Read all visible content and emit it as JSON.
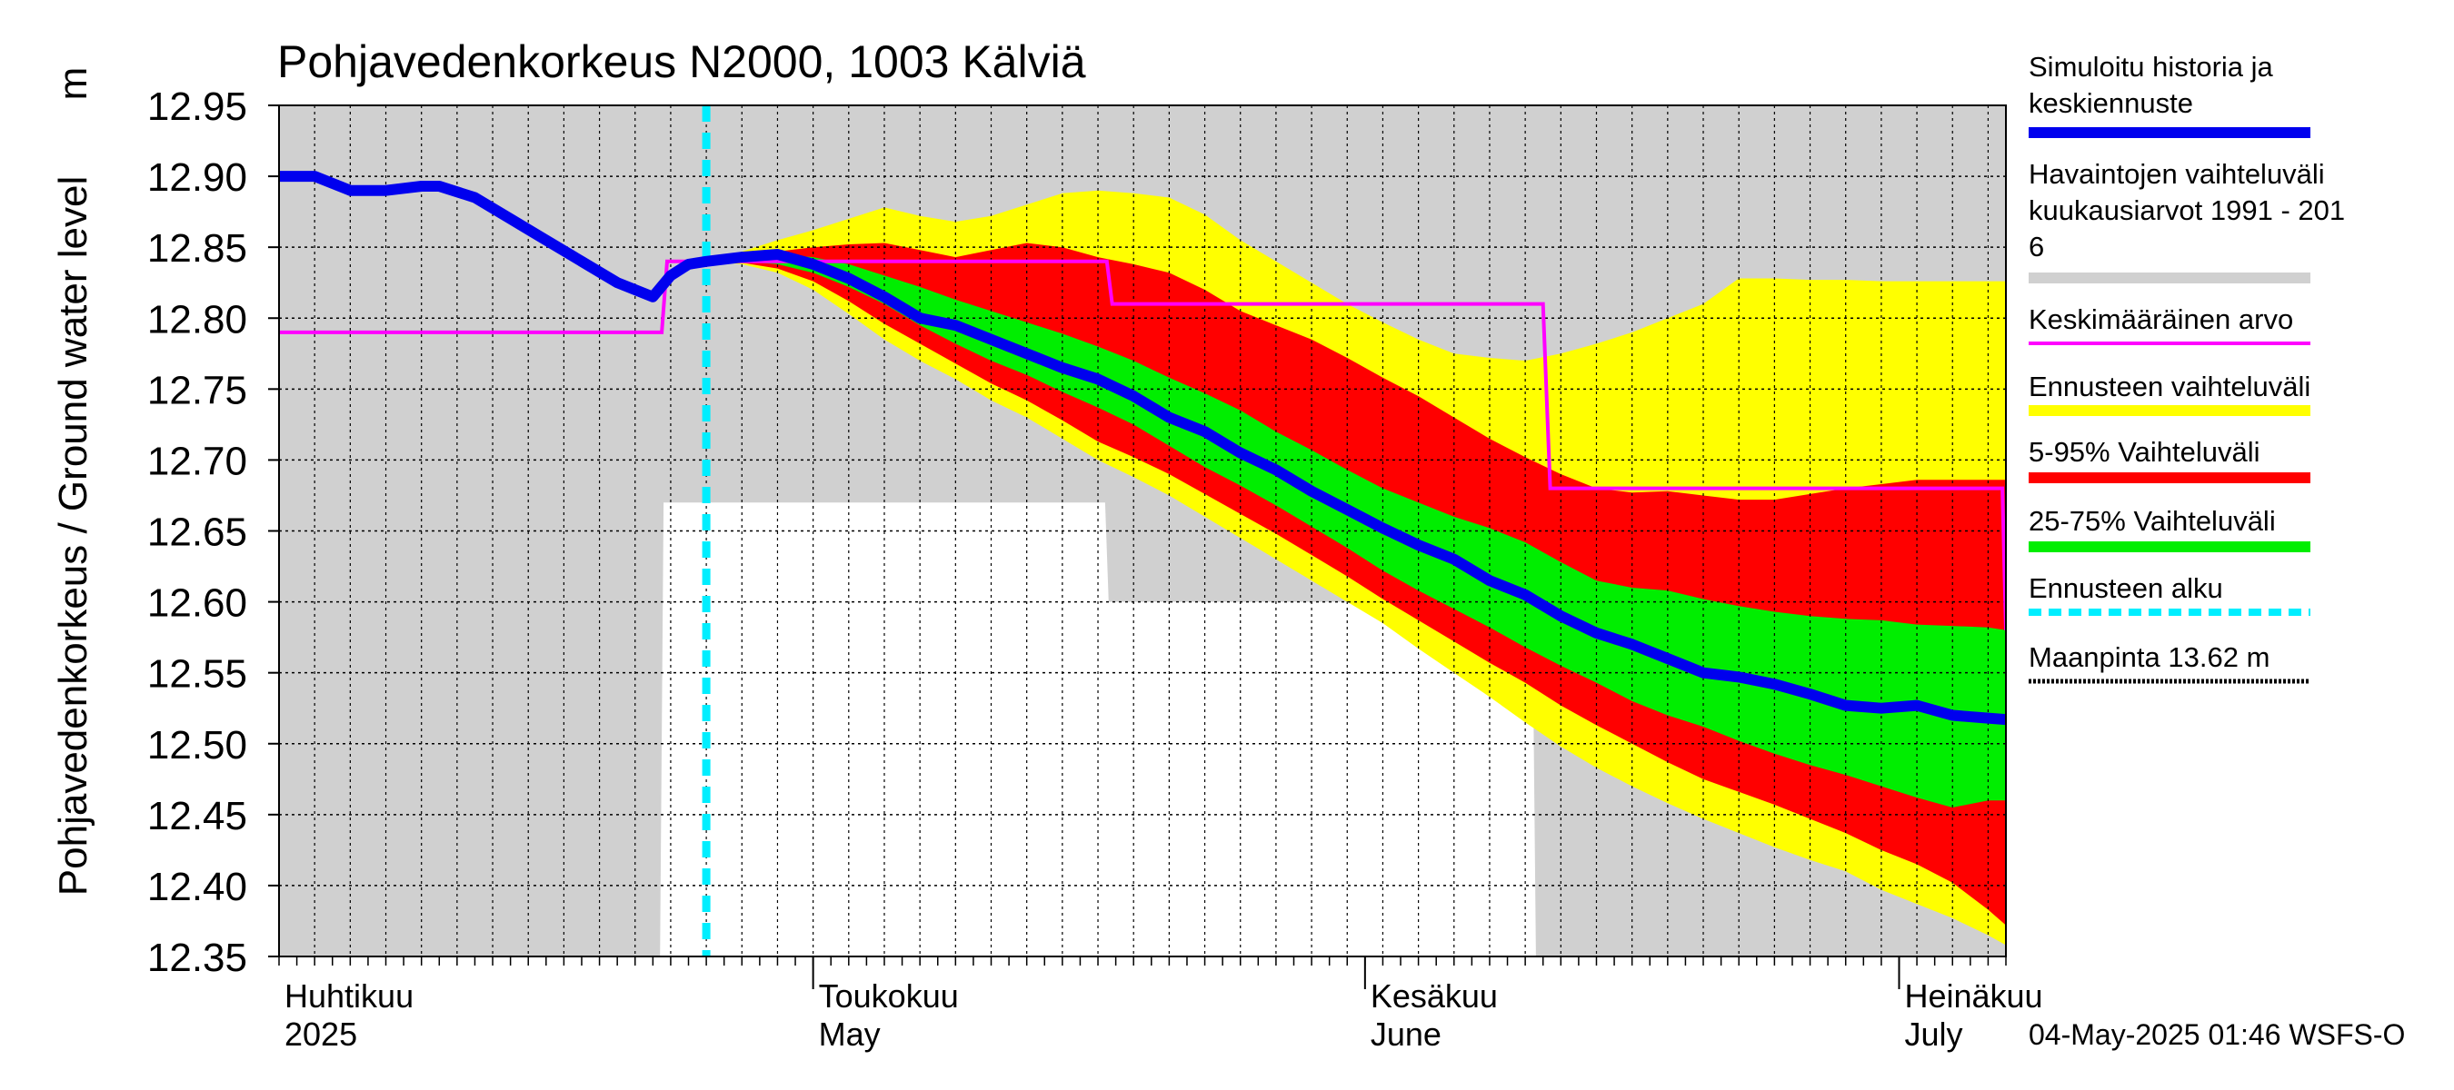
{
  "chart_data": {
    "type": "area",
    "title": "Pohjavedenkorkeus N2000, 1003 Kälviä",
    "ylabel_fi": "Pohjavedenkorkeus / Ground water level",
    "ylabel_unit": "m",
    "ylim": [
      12.35,
      12.95
    ],
    "yticks": [
      "12.95",
      "12.90",
      "12.85",
      "12.80",
      "12.75",
      "12.70",
      "12.65",
      "12.60",
      "12.55",
      "12.50",
      "12.45",
      "12.40",
      "12.35"
    ],
    "x_range_days": [
      0,
      97
    ],
    "month_labels": [
      {
        "fi": "Huhtikuu",
        "en": "2025",
        "day": 0
      },
      {
        "fi": "Toukokuu",
        "en": "May",
        "day": 30
      },
      {
        "fi": "Kesäkuu",
        "en": "June",
        "day": 61
      },
      {
        "fi": "Heinäkuu",
        "en": "July",
        "day": 91
      }
    ],
    "forecast_start_day": 24,
    "timestamp": "04-May-2025 01:46 WSFS-O",
    "legend": [
      {
        "label": "Simuloitu historia ja keskiennuste",
        "color": "#0000ee",
        "style": "thick"
      },
      {
        "label": "Havaintojen vaihteluväli kuukausiarvot 1991 - 2016",
        "color": "#d0d0d0",
        "style": "thick"
      },
      {
        "label": "Keskimääräinen arvo",
        "color": "#ff00ff",
        "style": "thin"
      },
      {
        "label": "Ennusteen vaihteluväli",
        "color": "#ffff00",
        "style": "thick"
      },
      {
        "label": "5-95% Vaihteluväli",
        "color": "#ff0000",
        "style": "thick"
      },
      {
        "label": "25-75% Vaihteluväli",
        "color": "#00ee00",
        "style": "thick"
      },
      {
        "label": "Ennusteen alku",
        "color": "#00eeff",
        "style": "dashed"
      },
      {
        "label": "Maanpinta 13.62 m",
        "color": "#000000",
        "style": "dotted"
      }
    ],
    "obs_range": {
      "x": [
        0,
        21.4,
        21.6,
        46.4,
        46.6,
        70.4,
        70.6,
        97
      ],
      "upper": [
        12.95,
        12.95,
        12.95,
        12.95,
        12.95,
        12.95,
        12.95,
        12.95
      ],
      "lower": [
        12.35,
        12.35,
        12.67,
        12.67,
        12.6,
        12.6,
        12.35,
        12.35
      ]
    },
    "mean_value": {
      "x": [
        0,
        21.5,
        21.8,
        46.5,
        46.8,
        71.0,
        71.4,
        96.8,
        97
      ],
      "y": [
        12.79,
        12.79,
        12.84,
        12.84,
        12.81,
        12.81,
        12.68,
        12.68,
        12.58
      ]
    },
    "simulated": {
      "x": [
        0,
        2,
        4,
        6,
        8,
        9,
        11,
        13,
        15,
        17,
        19,
        21,
        22,
        23,
        24,
        26,
        28,
        30,
        32,
        34,
        36,
        38,
        40,
        42,
        44,
        46,
        48,
        50,
        52,
        54,
        56,
        58,
        60,
        62,
        64,
        66,
        68,
        70,
        72,
        74,
        76,
        78,
        80,
        82,
        84,
        86,
        88,
        90,
        92,
        94,
        96,
        97
      ],
      "y": [
        12.9,
        12.9,
        12.89,
        12.89,
        12.893,
        12.893,
        12.885,
        12.87,
        12.855,
        12.84,
        12.825,
        12.815,
        12.83,
        12.838,
        12.84,
        12.843,
        12.845,
        12.838,
        12.828,
        12.815,
        12.8,
        12.795,
        12.785,
        12.775,
        12.765,
        12.757,
        12.745,
        12.73,
        12.72,
        12.705,
        12.693,
        12.678,
        12.665,
        12.652,
        12.64,
        12.63,
        12.615,
        12.605,
        12.59,
        12.578,
        12.57,
        12.56,
        12.55,
        12.547,
        12.542,
        12.535,
        12.527,
        12.525,
        12.527,
        12.52,
        12.518,
        12.517
      ]
    },
    "band_yellow": {
      "x": [
        24,
        26,
        28,
        30,
        32,
        34,
        36,
        38,
        40,
        42,
        44,
        46,
        48,
        50,
        52,
        54,
        56,
        58,
        60,
        62,
        64,
        66,
        68,
        70,
        72,
        74,
        76,
        78,
        80,
        82,
        84,
        86,
        88,
        90,
        92,
        94,
        96,
        97
      ],
      "upper": [
        12.84,
        12.847,
        12.855,
        12.862,
        12.87,
        12.878,
        12.872,
        12.868,
        12.872,
        12.88,
        12.888,
        12.89,
        12.888,
        12.885,
        12.873,
        12.855,
        12.84,
        12.825,
        12.81,
        12.797,
        12.785,
        12.775,
        12.772,
        12.77,
        12.775,
        12.782,
        12.79,
        12.8,
        12.81,
        12.828,
        12.828,
        12.827,
        12.827,
        12.826,
        12.826,
        12.826,
        12.826,
        12.826
      ],
      "lower": [
        12.84,
        12.838,
        12.832,
        12.82,
        12.803,
        12.785,
        12.77,
        12.757,
        12.742,
        12.73,
        12.715,
        12.7,
        12.688,
        12.675,
        12.66,
        12.645,
        12.63,
        12.615,
        12.6,
        12.585,
        12.567,
        12.55,
        12.533,
        12.515,
        12.498,
        12.483,
        12.47,
        12.458,
        12.447,
        12.437,
        12.427,
        12.418,
        12.41,
        12.397,
        12.387,
        12.377,
        12.365,
        12.358
      ]
    },
    "band_red": {
      "x": [
        24,
        26,
        28,
        30,
        32,
        34,
        36,
        38,
        40,
        42,
        44,
        46,
        48,
        50,
        52,
        54,
        56,
        58,
        60,
        62,
        64,
        66,
        68,
        70,
        72,
        74,
        76,
        78,
        80,
        82,
        84,
        86,
        88,
        90,
        92,
        94,
        96,
        97
      ],
      "upper": [
        12.84,
        12.843,
        12.847,
        12.85,
        12.852,
        12.853,
        12.848,
        12.843,
        12.848,
        12.853,
        12.85,
        12.843,
        12.838,
        12.832,
        12.82,
        12.805,
        12.795,
        12.785,
        12.772,
        12.758,
        12.745,
        12.73,
        12.715,
        12.702,
        12.69,
        12.68,
        12.677,
        12.678,
        12.675,
        12.672,
        12.672,
        12.676,
        12.68,
        12.683,
        12.686,
        12.686,
        12.686,
        12.686
      ],
      "lower": [
        12.84,
        12.839,
        12.835,
        12.826,
        12.812,
        12.796,
        12.782,
        12.768,
        12.754,
        12.742,
        12.728,
        12.713,
        12.702,
        12.69,
        12.676,
        12.662,
        12.648,
        12.633,
        12.618,
        12.602,
        12.587,
        12.572,
        12.557,
        12.543,
        12.527,
        12.513,
        12.5,
        12.487,
        12.475,
        12.466,
        12.457,
        12.447,
        12.437,
        12.425,
        12.415,
        12.402,
        12.383,
        12.372
      ]
    },
    "band_green": {
      "x": [
        24,
        26,
        28,
        30,
        32,
        34,
        36,
        38,
        40,
        42,
        44,
        46,
        48,
        50,
        52,
        54,
        56,
        58,
        60,
        62,
        64,
        66,
        68,
        70,
        72,
        74,
        76,
        78,
        80,
        82,
        84,
        86,
        88,
        90,
        92,
        94,
        96,
        97
      ],
      "upper": [
        12.84,
        12.842,
        12.845,
        12.843,
        12.838,
        12.83,
        12.822,
        12.813,
        12.805,
        12.797,
        12.789,
        12.78,
        12.77,
        12.758,
        12.747,
        12.735,
        12.72,
        12.707,
        12.693,
        12.68,
        12.67,
        12.66,
        12.652,
        12.642,
        12.628,
        12.615,
        12.61,
        12.608,
        12.602,
        12.597,
        12.593,
        12.59,
        12.588,
        12.587,
        12.584,
        12.583,
        12.582,
        12.58
      ],
      "lower": [
        12.84,
        12.84,
        12.838,
        12.832,
        12.822,
        12.81,
        12.795,
        12.782,
        12.77,
        12.76,
        12.748,
        12.737,
        12.725,
        12.71,
        12.695,
        12.682,
        12.668,
        12.653,
        12.638,
        12.622,
        12.608,
        12.595,
        12.582,
        12.568,
        12.555,
        12.543,
        12.53,
        12.52,
        12.512,
        12.502,
        12.493,
        12.485,
        12.478,
        12.47,
        12.462,
        12.455,
        12.46,
        12.46
      ]
    }
  }
}
